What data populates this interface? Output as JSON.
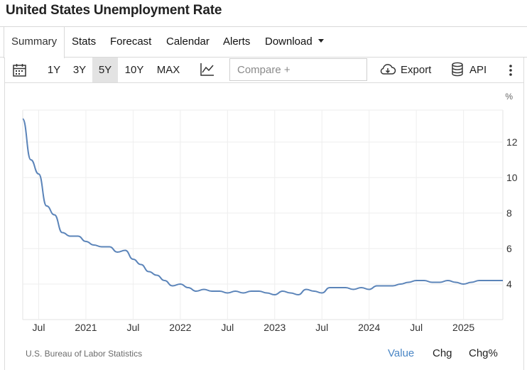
{
  "title": "United States Unemployment Rate",
  "tabs": [
    "Summary",
    "Stats",
    "Forecast",
    "Calendar",
    "Alerts",
    "Download"
  ],
  "toolbar": {
    "ranges": [
      "1Y",
      "3Y",
      "5Y",
      "10Y",
      "MAX"
    ],
    "active_range": "5Y",
    "compare_placeholder": "Compare +",
    "export_label": "Export",
    "api_label": "API"
  },
  "footer": {
    "source": "U.S. Bureau of Labor Statistics",
    "toggles": [
      "Value",
      "Chg",
      "Chg%"
    ],
    "active_toggle": "Value"
  },
  "colors": {
    "series": "#5b84b9",
    "active_toggle": "#4a86c5"
  },
  "chart_data": {
    "type": "line",
    "title": "",
    "xlabel": "",
    "ylabel": "",
    "y_unit_label": "%",
    "ylim": [
      2.0,
      13.8
    ],
    "y_ticks": [
      4,
      6,
      8,
      10,
      12
    ],
    "x_range": [
      "2020-05",
      "2025-06"
    ],
    "x_ticks": [
      {
        "label": "Jul",
        "at": "2020-07"
      },
      {
        "label": "2021",
        "at": "2021-01"
      },
      {
        "label": "Jul",
        "at": "2021-07"
      },
      {
        "label": "2022",
        "at": "2022-01"
      },
      {
        "label": "Jul",
        "at": "2022-07"
      },
      {
        "label": "2023",
        "at": "2023-01"
      },
      {
        "label": "Jul",
        "at": "2023-07"
      },
      {
        "label": "2024",
        "at": "2024-01"
      },
      {
        "label": "Jul",
        "at": "2024-07"
      },
      {
        "label": "2025",
        "at": "2025-01"
      }
    ],
    "grid": true,
    "series": [
      {
        "x": [
          "2020-05",
          "2020-06",
          "2020-07",
          "2020-08",
          "2020-09",
          "2020-10",
          "2020-11",
          "2020-12",
          "2021-01",
          "2021-02",
          "2021-03",
          "2021-04",
          "2021-05",
          "2021-06",
          "2021-07",
          "2021-08",
          "2021-09",
          "2021-10",
          "2021-11",
          "2021-12",
          "2022-01",
          "2022-02",
          "2022-03",
          "2022-04",
          "2022-05",
          "2022-06",
          "2022-07",
          "2022-08",
          "2022-09",
          "2022-10",
          "2022-11",
          "2022-12",
          "2023-01",
          "2023-02",
          "2023-03",
          "2023-04",
          "2023-05",
          "2023-06",
          "2023-07",
          "2023-08",
          "2023-09",
          "2023-10",
          "2023-11",
          "2023-12",
          "2024-01",
          "2024-02",
          "2024-03",
          "2024-04",
          "2024-05",
          "2024-06",
          "2024-07",
          "2024-08",
          "2024-09",
          "2024-10",
          "2024-11",
          "2024-12",
          "2025-01",
          "2025-02",
          "2025-03",
          "2025-04",
          "2025-05"
        ],
        "values": [
          13.3,
          11.0,
          10.2,
          8.4,
          7.9,
          6.9,
          6.7,
          6.7,
          6.4,
          6.2,
          6.1,
          6.1,
          5.8,
          5.9,
          5.4,
          5.1,
          4.7,
          4.5,
          4.2,
          3.9,
          4.0,
          3.8,
          3.6,
          3.7,
          3.6,
          3.6,
          3.5,
          3.6,
          3.5,
          3.6,
          3.6,
          3.5,
          3.4,
          3.6,
          3.5,
          3.4,
          3.7,
          3.6,
          3.5,
          3.8,
          3.8,
          3.8,
          3.7,
          3.8,
          3.7,
          3.9,
          3.9,
          3.9,
          4.0,
          4.1,
          4.2,
          4.2,
          4.1,
          4.1,
          4.2,
          4.1,
          4.0,
          4.1,
          4.2,
          4.2,
          4.2
        ]
      }
    ]
  }
}
